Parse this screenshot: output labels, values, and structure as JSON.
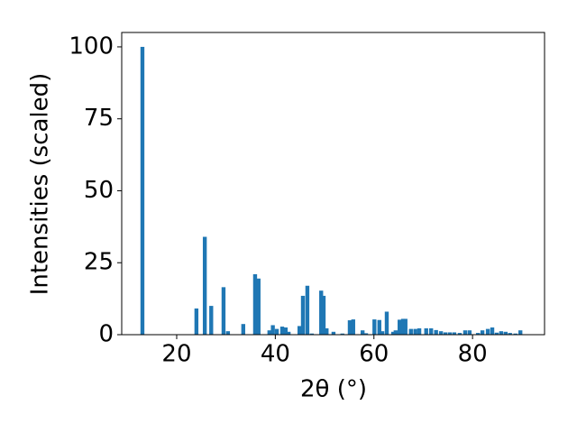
{
  "chart_data": {
    "type": "bar",
    "xlabel": "2θ (°)",
    "ylabel": "Intensities (scaled)",
    "x": [
      13.05,
      24.0,
      25.7,
      27.0,
      29.5,
      30.4,
      33.5,
      35.9,
      36.6,
      38.8,
      39.5,
      40.3,
      41.4,
      42.1,
      42.7,
      44.9,
      45.6,
      46.5,
      47.4,
      49.3,
      49.8,
      50.4,
      51.8,
      53.6,
      55.1,
      55.8,
      57.7,
      58.4,
      60.1,
      61.1,
      61.7,
      62.6,
      63.9,
      64.4,
      65.2,
      65.9,
      66.4,
      67.5,
      68.4,
      69.2,
      70.6,
      71.6,
      72.6,
      73.6,
      74.5,
      75.4,
      76.3,
      77.4,
      78.5,
      79.4,
      81.1,
      82.0,
      83.1,
      84.0,
      84.9,
      85.8,
      86.7,
      87.6,
      88.7,
      89.7
    ],
    "values": [
      100,
      9.1,
      34,
      10,
      16.5,
      1.2,
      3.7,
      21,
      19.5,
      1.5,
      3.3,
      2,
      2.8,
      2.5,
      1,
      3,
      13.5,
      17,
      0.4,
      15.3,
      13.5,
      2.2,
      1,
      0.4,
      5,
      5.3,
      1.5,
      0.5,
      5.3,
      5.1,
      1.2,
      8,
      1,
      1.5,
      5.2,
      5.5,
      5.5,
      2,
      2,
      2.2,
      2.2,
      2.2,
      1.6,
      1.2,
      0.8,
      0.8,
      0.8,
      0.6,
      1.5,
      1.5,
      0.6,
      1.5,
      2,
      2.5,
      0.7,
      1.2,
      1,
      0.6,
      0.4,
      1.5
    ],
    "color": "#1f77b4",
    "xlim": [
      8.85,
      94.6
    ],
    "xticks": [
      20,
      40,
      60,
      80
    ],
    "ylim": [
      0,
      105
    ],
    "yticks": [
      0,
      25,
      50,
      75,
      100
    ],
    "grid": false
  }
}
